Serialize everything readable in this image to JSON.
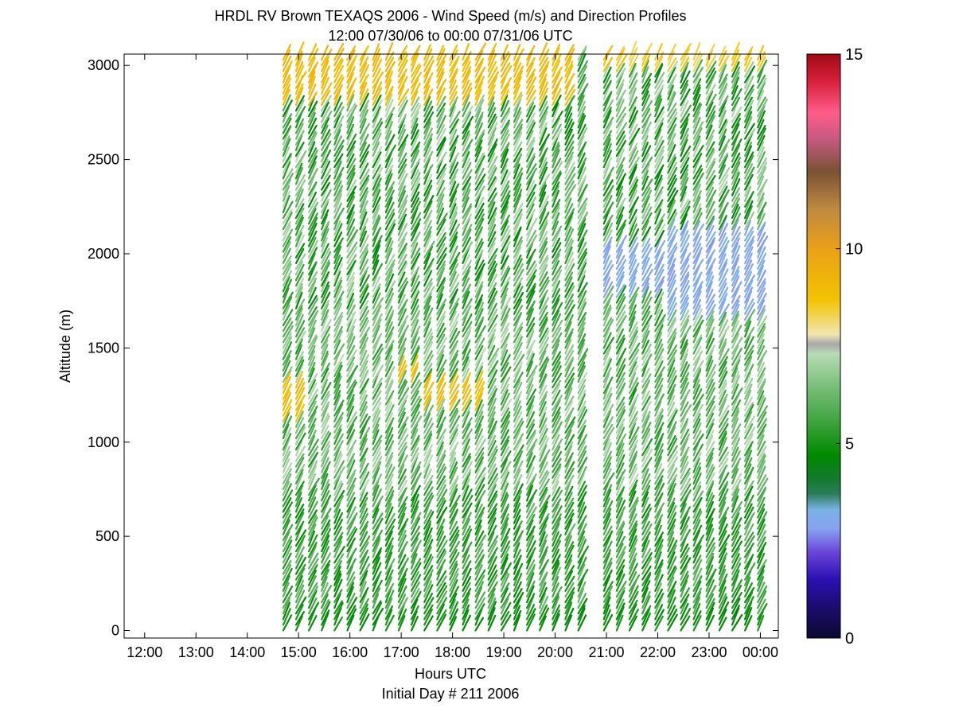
{
  "chart_data": {
    "type": "wind-barb-profile",
    "title": "HRDL RV Brown TEXAQS 2006 - Wind Speed (m/s) and Direction Profiles",
    "subtitle": "12:00 07/30/06 to 00:00 07/31/06  UTC",
    "xlabel": "Hours UTC",
    "xlabel2": "Initial Day # 211  2006",
    "ylabel": "Altitude (m)",
    "xlim": [
      11.6,
      24.35
    ],
    "ylim": [
      -40,
      3060
    ],
    "x_ticks": [
      12,
      13,
      14,
      15,
      16,
      17,
      18,
      19,
      20,
      21,
      22,
      23,
      24
    ],
    "x_tick_labels": [
      "12:00",
      "13:00",
      "14:00",
      "15:00",
      "16:00",
      "17:00",
      "18:00",
      "19:00",
      "20:00",
      "21:00",
      "22:00",
      "23:00",
      "00:00"
    ],
    "y_ticks": [
      0,
      500,
      1000,
      1500,
      2000,
      2500,
      3000
    ],
    "y_tick_labels": [
      "0",
      "500",
      "1000",
      "1500",
      "2000",
      "2500",
      "3000"
    ],
    "data_start_hour": 14.7,
    "data_end_hour": 24.0,
    "gap_hours": [
      20.55,
      20.75
    ],
    "profile_interval_hours": 0.25,
    "altitude_step_m": 30,
    "wind_speed_regions": [
      {
        "t": [
          14.7,
          20.4
        ],
        "z": [
          2780,
          3060
        ],
        "speed": 9.0
      },
      {
        "t": [
          20.8,
          24.0
        ],
        "z": [
          2950,
          3060
        ],
        "speed": 8.5
      },
      {
        "t": [
          14.7,
          15.0
        ],
        "z": [
          1100,
          1300
        ],
        "speed": 9.0
      },
      {
        "t": [
          16.9,
          17.3
        ],
        "z": [
          1320,
          1380
        ],
        "speed": 9.0
      },
      {
        "t": [
          17.3,
          18.5
        ],
        "z": [
          1160,
          1290
        ],
        "speed": 9.0
      },
      {
        "t": [
          20.8,
          22.7
        ],
        "z": [
          1750,
          2020
        ],
        "speed": 3.0
      },
      {
        "t": [
          22.0,
          24.0
        ],
        "z": [
          1650,
          2100
        ],
        "speed": 3.0
      },
      {
        "t": [
          14.7,
          24.0
        ],
        "z": [
          0,
          80
        ],
        "speed": 4.8
      }
    ],
    "colorbar": {
      "min": 0,
      "max": 15,
      "ticks": [
        0,
        5,
        10,
        15
      ],
      "tick_labels": [
        "0",
        "5",
        "10",
        "15"
      ],
      "stops": [
        {
          "v": 0.0,
          "color": "#0a0a32"
        },
        {
          "v": 0.8,
          "color": "#1c0c6e"
        },
        {
          "v": 1.5,
          "color": "#2a10b0"
        },
        {
          "v": 2.2,
          "color": "#6a44d8"
        },
        {
          "v": 2.8,
          "color": "#86a2ee"
        },
        {
          "v": 3.3,
          "color": "#7ab2e6"
        },
        {
          "v": 3.7,
          "color": "#2a7f5a"
        },
        {
          "v": 4.1,
          "color": "#137a2a"
        },
        {
          "v": 4.7,
          "color": "#008a00"
        },
        {
          "v": 5.5,
          "color": "#3aa23a"
        },
        {
          "v": 6.5,
          "color": "#7cc07c"
        },
        {
          "v": 7.3,
          "color": "#b8dcb4"
        },
        {
          "v": 7.55,
          "color": "#a8a8a8"
        },
        {
          "v": 7.8,
          "color": "#f0e6b0"
        },
        {
          "v": 8.7,
          "color": "#f2c300"
        },
        {
          "v": 10.0,
          "color": "#eaa018"
        },
        {
          "v": 11.0,
          "color": "#c08a40"
        },
        {
          "v": 12.0,
          "color": "#7a5234"
        },
        {
          "v": 12.8,
          "color": "#c45a80"
        },
        {
          "v": 13.5,
          "color": "#ff5c8a"
        },
        {
          "v": 14.3,
          "color": "#d8203c"
        },
        {
          "v": 15.0,
          "color": "#a00a14"
        }
      ]
    }
  }
}
